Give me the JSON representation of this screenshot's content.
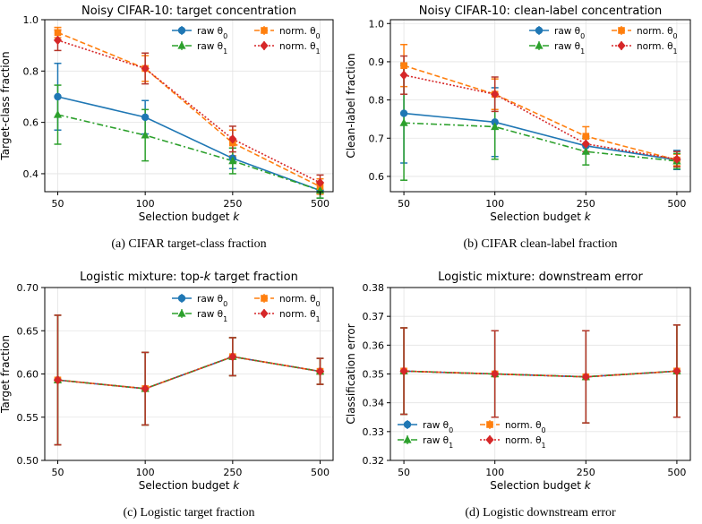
{
  "chart_data": [
    {
      "type": "line",
      "title": "Noisy CIFAR-10: target concentration",
      "caption": "(a) CIFAR target-class fraction",
      "xlabel": "Selection budget k",
      "ylabel": "Target-class fraction",
      "categories": [
        "50",
        "100",
        "250",
        "500"
      ],
      "ylim": [
        0.33,
        1.0
      ],
      "yticks": [
        "0.4",
        "0.6",
        "0.8",
        "1.0"
      ],
      "ytick_values": [
        0.4,
        0.6,
        0.8,
        1.0
      ],
      "legend": "top-right",
      "legend_cols": 2,
      "series": [
        {
          "name": "raw θ0",
          "values": [
            0.7,
            0.62,
            0.46,
            0.335
          ],
          "err": [
            0.13,
            0.065,
            0.04,
            0.03
          ]
        },
        {
          "name": "norm. θ0",
          "values": [
            0.95,
            0.81,
            0.52,
            0.35
          ],
          "err": [
            0.02,
            0.05,
            0.05,
            0.03
          ]
        },
        {
          "name": "raw θ1",
          "values": [
            0.63,
            0.55,
            0.45,
            0.335
          ],
          "err": [
            0.115,
            0.1,
            0.05,
            0.03
          ]
        },
        {
          "name": "norm. θ1",
          "values": [
            0.92,
            0.81,
            0.535,
            0.365
          ],
          "err": [
            0.04,
            0.06,
            0.05,
            0.03
          ]
        }
      ]
    },
    {
      "type": "line",
      "title": "Noisy CIFAR-10: clean-label concentration",
      "caption": "(b) CIFAR clean-label fraction",
      "xlabel": "Selection budget k",
      "ylabel": "Clean-label fraction",
      "categories": [
        "50",
        "100",
        "250",
        "500"
      ],
      "ylim": [
        0.56,
        1.01
      ],
      "yticks": [
        "0.6",
        "0.7",
        "0.8",
        "0.9",
        "1.0"
      ],
      "ytick_values": [
        0.6,
        0.7,
        0.8,
        0.9,
        1.0
      ],
      "legend": "top-right",
      "legend_cols": 2,
      "series": [
        {
          "name": "raw θ0",
          "values": [
            0.765,
            0.742,
            0.68,
            0.643
          ],
          "err": [
            0.13,
            0.09,
            0.02,
            0.025
          ]
        },
        {
          "name": "norm. θ0",
          "values": [
            0.89,
            0.815,
            0.705,
            0.643
          ],
          "err": [
            0.055,
            0.04,
            0.025,
            0.015
          ]
        },
        {
          "name": "raw θ1",
          "values": [
            0.74,
            0.73,
            0.665,
            0.64
          ],
          "err": [
            0.15,
            0.085,
            0.035,
            0.02
          ]
        },
        {
          "name": "norm. θ1",
          "values": [
            0.865,
            0.815,
            0.685,
            0.645
          ],
          "err": [
            0.05,
            0.045,
            0.02,
            0.02
          ]
        }
      ]
    },
    {
      "type": "line",
      "title": "Logistic mixture: top-k target fraction",
      "caption": "(c) Logistic target fraction",
      "xlabel": "Selection budget k",
      "ylabel": "Target fraction",
      "categories": [
        "50",
        "100",
        "250",
        "500"
      ],
      "ylim": [
        0.5,
        0.7
      ],
      "yticks": [
        "0.50",
        "0.55",
        "0.60",
        "0.65",
        "0.70"
      ],
      "ytick_values": [
        0.5,
        0.55,
        0.6,
        0.65,
        0.7
      ],
      "legend": "top-right",
      "legend_cols": 2,
      "series": [
        {
          "name": "raw θ0",
          "values": [
            0.593,
            0.583,
            0.62,
            0.603
          ],
          "err": [
            0.075,
            0.042,
            0.022,
            0.015
          ]
        },
        {
          "name": "norm. θ0",
          "values": [
            0.593,
            0.583,
            0.62,
            0.603
          ],
          "err": [
            0.075,
            0.042,
            0.022,
            0.015
          ]
        },
        {
          "name": "raw θ1",
          "values": [
            0.593,
            0.583,
            0.62,
            0.603
          ],
          "err": [
            0.075,
            0.042,
            0.022,
            0.015
          ]
        },
        {
          "name": "norm. θ1",
          "values": [
            0.593,
            0.583,
            0.62,
            0.603
          ],
          "err": [
            0.075,
            0.042,
            0.022,
            0.015
          ]
        }
      ]
    },
    {
      "type": "line",
      "title": "Logistic mixture: downstream error",
      "caption": "(d) Logistic downstream error",
      "xlabel": "Selection budget k",
      "ylabel": "Classification error",
      "categories": [
        "50",
        "100",
        "250",
        "500"
      ],
      "ylim": [
        0.32,
        0.38
      ],
      "yticks": [
        "0.32",
        "0.33",
        "0.34",
        "0.35",
        "0.36",
        "0.37",
        "0.38"
      ],
      "ytick_values": [
        0.32,
        0.33,
        0.34,
        0.35,
        0.36,
        0.37,
        0.38
      ],
      "legend": "lower-left",
      "legend_cols": 2,
      "series": [
        {
          "name": "raw θ0",
          "values": [
            0.351,
            0.35,
            0.349,
            0.351
          ],
          "err": [
            0.015,
            0.015,
            0.016,
            0.016
          ]
        },
        {
          "name": "norm. θ0",
          "values": [
            0.351,
            0.35,
            0.349,
            0.351
          ],
          "err": [
            0.015,
            0.015,
            0.016,
            0.016
          ]
        },
        {
          "name": "raw θ1",
          "values": [
            0.351,
            0.35,
            0.349,
            0.351
          ],
          "err": [
            0.015,
            0.015,
            0.016,
            0.016
          ]
        },
        {
          "name": "norm. θ1",
          "values": [
            0.351,
            0.35,
            0.349,
            0.351
          ],
          "err": [
            0.015,
            0.015,
            0.016,
            0.016
          ]
        }
      ]
    }
  ],
  "series_styles": [
    {
      "color": "#1f77b4",
      "dash": "",
      "marker": "circle"
    },
    {
      "color": "#ff7f0e",
      "dash": "6 3",
      "marker": "square"
    },
    {
      "color": "#2ca02c",
      "dash": "7 3 2 3",
      "marker": "triangle"
    },
    {
      "color": "#d62728",
      "dash": "2 2",
      "marker": "diamond"
    }
  ],
  "error_bar_colors": [
    "#1f77b4",
    "#ff7f0e",
    "#2ca02c",
    "#b5352a"
  ]
}
